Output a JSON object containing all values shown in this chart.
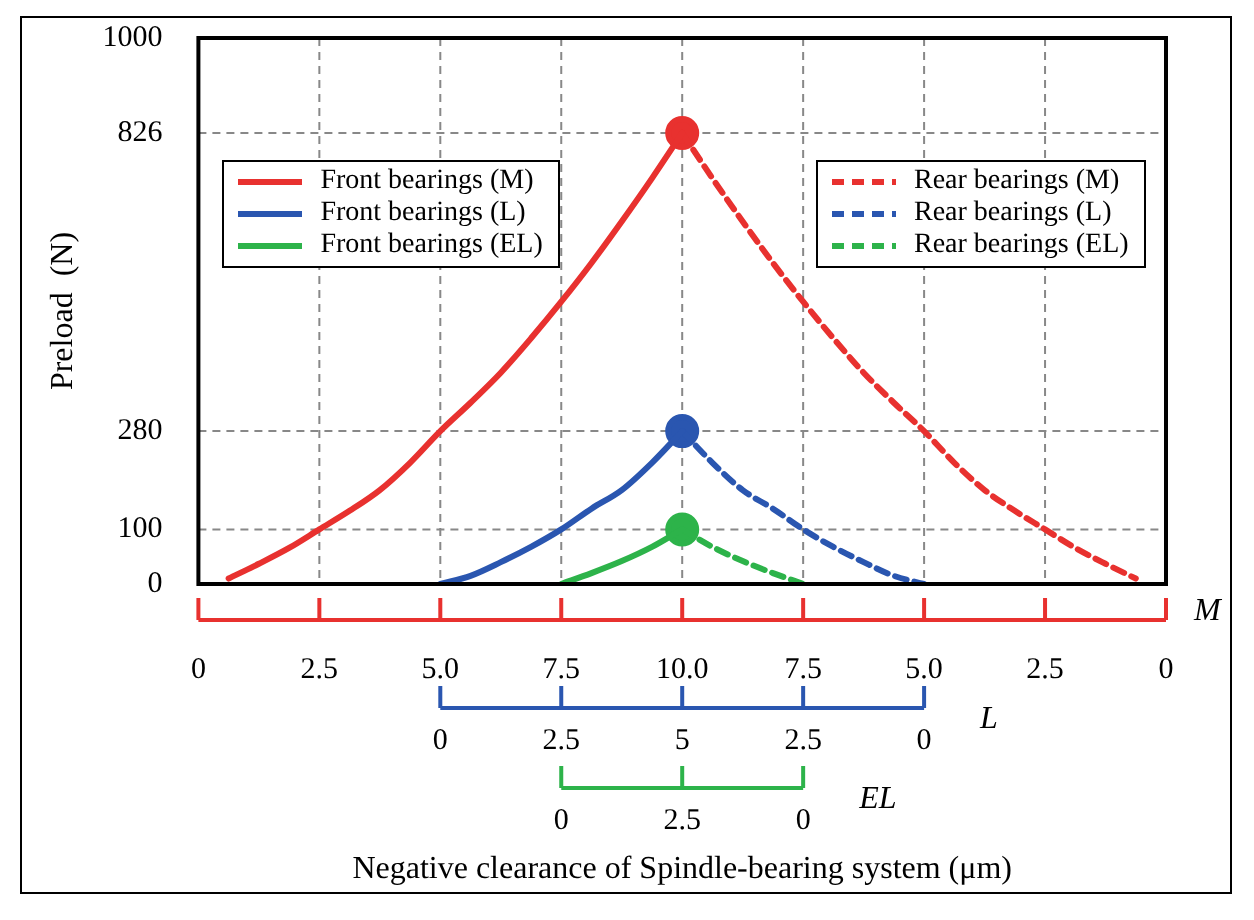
{
  "chart_data": {
    "type": "line",
    "ylabel": "Preload  (N)",
    "categories": [
      "0",
      null,
      null,
      null,
      "2.5",
      null,
      null,
      null,
      "5.0",
      null,
      null,
      null,
      "7.5",
      null,
      null,
      null,
      "10.0",
      null,
      null,
      null,
      "7.5",
      null,
      null,
      null,
      "5.0",
      null,
      null,
      null,
      "2.5",
      null,
      null,
      null,
      "0"
    ],
    "annotations": [
      "M",
      "L",
      "0",
      "2.5",
      "5",
      "2.5",
      "0",
      "EL",
      "0",
      "2.5",
      "0",
      "Negative clearance of Spindle-bearing system (μm)"
    ],
    "ylim": [
      0,
      1000
    ],
    "yticks": [
      0,
      100,
      280,
      826,
      1000
    ],
    "grid": true,
    "legend": "top",
    "marker": "none",
    "series": [
      {
        "name": "Front bearings (M)",
        "color": "#e8312f",
        "line_style": "solid",
        "values": [
          null,
          10,
          37,
          66,
          100,
          134,
          172,
          222,
          280,
          332,
          387,
          450,
          517,
          588,
          664,
          743,
          826,
          null,
          null,
          null,
          null,
          null,
          null,
          null,
          null,
          null,
          null,
          null,
          null,
          null,
          null,
          null,
          null
        ]
      },
      {
        "name": "Front bearings (L)",
        "color": "#2a56b0",
        "line_style": "solid",
        "values": [
          null,
          null,
          null,
          null,
          null,
          null,
          null,
          null,
          0,
          15,
          40,
          68,
          100,
          138,
          172,
          222,
          280,
          null,
          null,
          null,
          null,
          null,
          null,
          null,
          null,
          null,
          null,
          null,
          null,
          null,
          null,
          null,
          null
        ]
      },
      {
        "name": "Front bearings (EL)",
        "color": "#2db34a",
        "line_style": "solid",
        "values": [
          null,
          null,
          null,
          null,
          null,
          null,
          null,
          null,
          null,
          null,
          null,
          null,
          0,
          20,
          42,
          68,
          100,
          null,
          null,
          null,
          null,
          null,
          null,
          null,
          null,
          null,
          null,
          null,
          null,
          null,
          null,
          null,
          null
        ]
      },
      {
        "name": "Rear bearings (M)",
        "color": "#e8312f",
        "line_style": "dashed",
        "values": [
          null,
          null,
          null,
          null,
          null,
          null,
          null,
          null,
          null,
          null,
          null,
          null,
          null,
          null,
          null,
          null,
          826,
          743,
          664,
          588,
          517,
          450,
          387,
          332,
          280,
          222,
          172,
          134,
          100,
          66,
          37,
          10,
          null
        ]
      },
      {
        "name": "Rear bearings (L)",
        "color": "#2a56b0",
        "line_style": "dashed",
        "values": [
          null,
          null,
          null,
          null,
          null,
          null,
          null,
          null,
          null,
          null,
          null,
          null,
          null,
          null,
          null,
          null,
          280,
          222,
          172,
          138,
          100,
          68,
          40,
          15,
          0,
          null,
          null,
          null,
          null,
          null,
          null,
          null,
          null
        ]
      },
      {
        "name": "Rear bearings (EL)",
        "color": "#2db34a",
        "line_style": "dashed",
        "values": [
          null,
          null,
          null,
          null,
          null,
          null,
          null,
          null,
          null,
          null,
          null,
          null,
          null,
          null,
          null,
          null,
          100,
          68,
          42,
          20,
          0,
          null,
          null,
          null,
          null,
          null,
          null,
          null,
          null,
          null,
          null,
          null,
          null
        ]
      },
      {
        "type": "scatter",
        "color": "#e8312f",
        "marker": "circle",
        "x": [
          "10.0"
        ],
        "values": [
          826
        ]
      },
      {
        "type": "scatter",
        "color": "#2a56b0",
        "marker": "circle",
        "x": [
          "10.0"
        ],
        "values": [
          280
        ]
      },
      {
        "type": "scatter",
        "color": "#2db34a",
        "marker": "circle",
        "x": [
          "10.0"
        ],
        "values": [
          100
        ]
      }
    ]
  }
}
